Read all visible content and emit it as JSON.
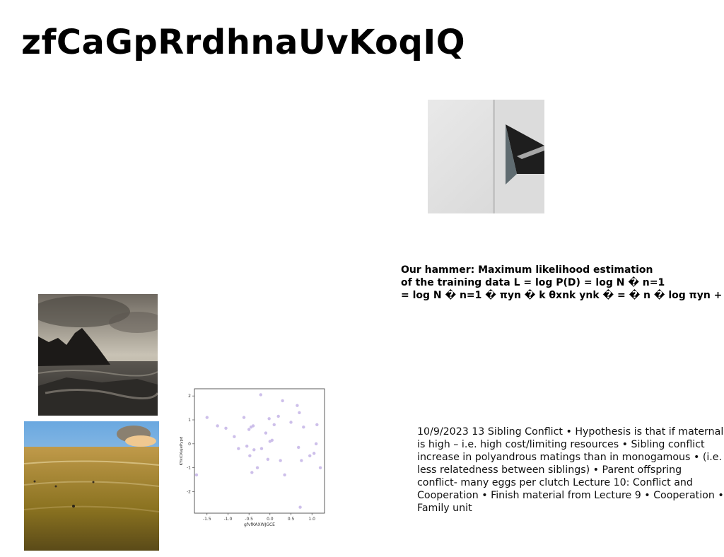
{
  "title": "zfCaGpRrdhnaUvKoqIQ",
  "mle_lines": [
    "Our hammer: Maximum likelihood estimation",
    "of the training data L = log P(D) = log N � n=1",
    "= log N � n=1 � πyn � k θxnk ynk � = � n � log πyn + �"
  ],
  "notes_text": "10/9/2023 13 Sibling Conflict • Hypothesis is that if maternal is high – i.e. high cost/limiting resources • Sibling conflict increase in polyandrous matings than in monogamous • (i.e. less relatedness between siblings) • Parent offspring conflict- many eggs per clutch Lecture 10: Conflict and Cooperation • Finish material from Lecture 9 • Cooperation • Family unit",
  "chart_data": {
    "type": "scatter",
    "xlabel": "gfvfKAXWJGCE",
    "ylabel": "KYkiOXajePypd",
    "xlim": [
      -1.8,
      1.3
    ],
    "ylim": [
      -2.9,
      2.3
    ],
    "xticks": [
      "-1.5",
      "-1.0",
      "-0.5",
      "0.0",
      "0.5",
      "1.0"
    ],
    "yticks": [
      "2",
      "1",
      "0",
      "-1",
      "-2"
    ],
    "point_color": "#c8b8e8",
    "points": [
      [
        -1.75,
        -1.3
      ],
      [
        -1.5,
        1.1
      ],
      [
        -1.25,
        0.75
      ],
      [
        -1.05,
        0.65
      ],
      [
        -0.85,
        0.3
      ],
      [
        -0.75,
        -0.2
      ],
      [
        -0.62,
        1.1
      ],
      [
        -0.55,
        -0.1
      ],
      [
        -0.5,
        0.6
      ],
      [
        -0.48,
        -0.5
      ],
      [
        -0.45,
        0.7
      ],
      [
        -0.43,
        -1.2
      ],
      [
        -0.4,
        0.75
      ],
      [
        -0.38,
        -0.25
      ],
      [
        -0.3,
        -1.0
      ],
      [
        -0.22,
        2.05
      ],
      [
        -0.2,
        -0.2
      ],
      [
        -0.1,
        0.45
      ],
      [
        -0.05,
        -0.65
      ],
      [
        -0.02,
        1.05
      ],
      [
        0.0,
        0.1
      ],
      [
        0.05,
        0.15
      ],
      [
        0.1,
        0.8
      ],
      [
        0.2,
        1.15
      ],
      [
        0.25,
        -0.7
      ],
      [
        0.3,
        1.8
      ],
      [
        0.35,
        -1.3
      ],
      [
        0.5,
        0.9
      ],
      [
        0.65,
        1.6
      ],
      [
        0.68,
        -0.15
      ],
      [
        0.7,
        1.3
      ],
      [
        0.72,
        -2.65
      ],
      [
        0.75,
        -0.7
      ],
      [
        0.8,
        0.7
      ],
      [
        0.95,
        -0.5
      ],
      [
        1.05,
        -0.4
      ],
      [
        1.1,
        0.0
      ],
      [
        1.12,
        0.8
      ],
      [
        1.2,
        -1.0
      ]
    ]
  }
}
